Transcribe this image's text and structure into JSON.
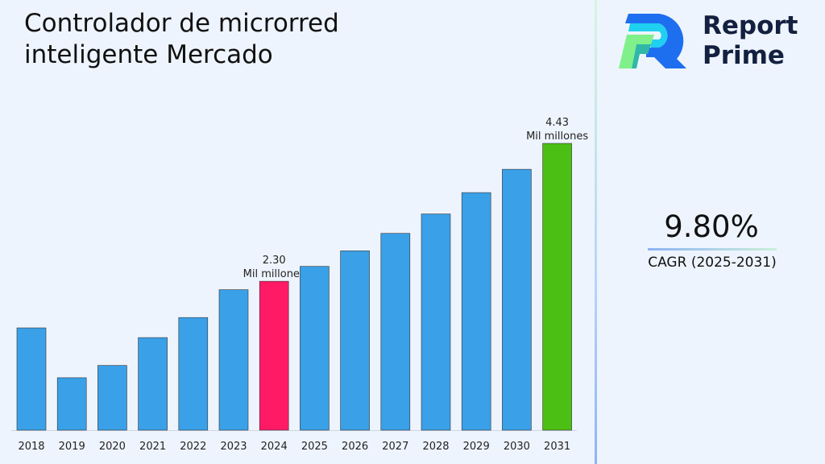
{
  "chart_data": {
    "type": "bar",
    "title": "Controlador de microrred inteligente Mercado",
    "categories": [
      "2018",
      "2019",
      "2020",
      "2021",
      "2022",
      "2023",
      "2024",
      "2025",
      "2026",
      "2027",
      "2028",
      "2029",
      "2030",
      "2031"
    ],
    "values": [
      1.58,
      0.81,
      1.0,
      1.43,
      1.74,
      2.17,
      2.3,
      2.53,
      2.77,
      3.04,
      3.34,
      3.67,
      4.03,
      4.43
    ],
    "ylim": [
      0,
      4.43
    ],
    "grid": false,
    "colors": {
      "default": "#3aa0e8",
      "highlight_2024": "#ff1a66",
      "highlight_2031": "#4cbf14"
    },
    "annotations": [
      {
        "category": "2024",
        "value": "2.30",
        "unit": "Mil millones"
      },
      {
        "category": "2031",
        "value": "4.43",
        "unit": "Mil millones"
      }
    ]
  },
  "brand": {
    "line1": "Report",
    "line2": "Prime"
  },
  "cagr": {
    "value": "9.80%",
    "label": "CAGR (2025-2031)"
  }
}
